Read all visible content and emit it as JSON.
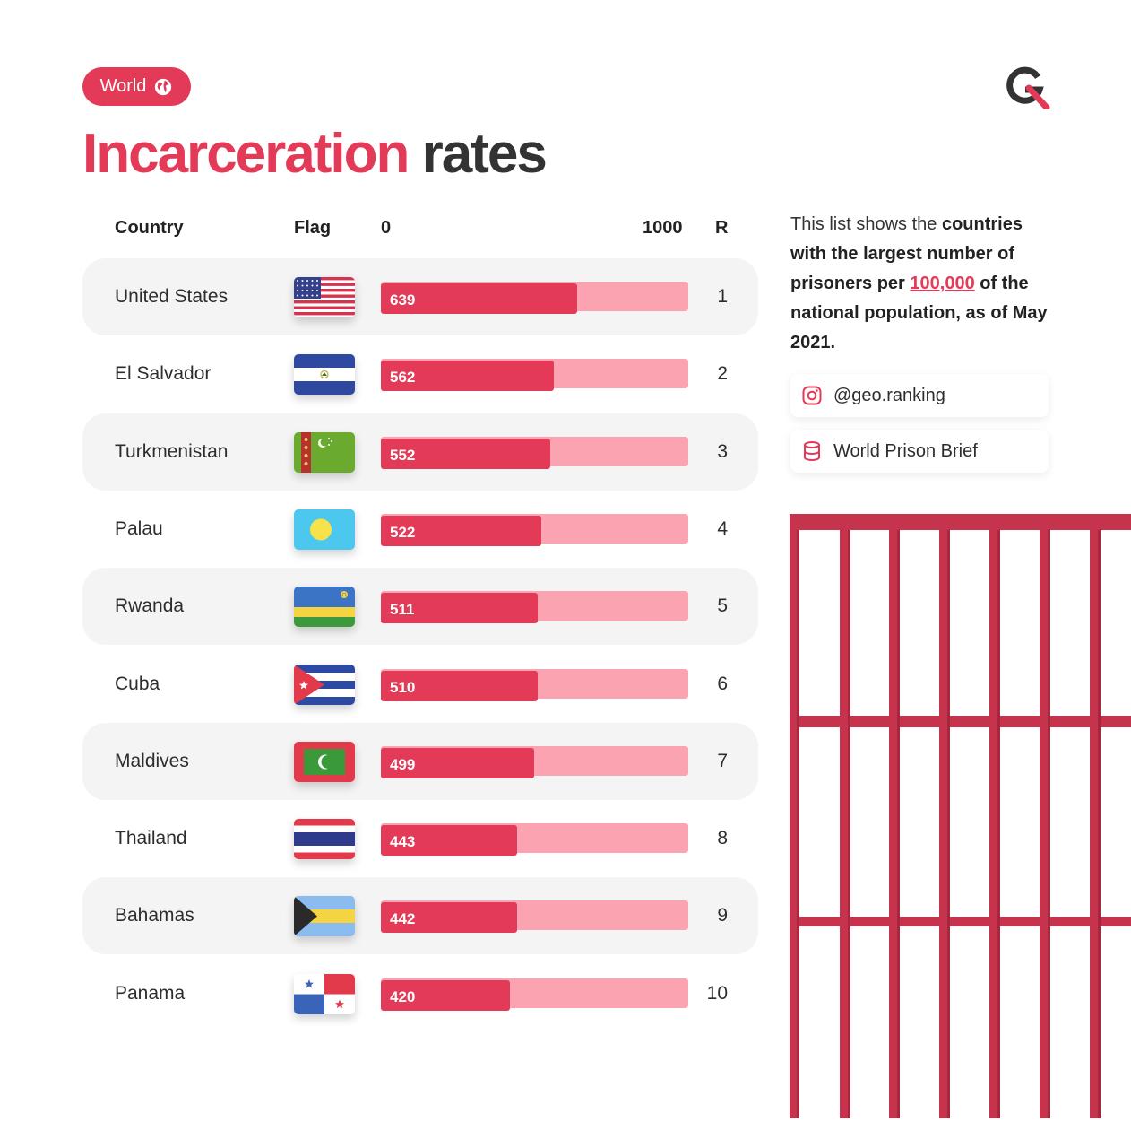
{
  "badge": {
    "label": "World",
    "icon": "globe-icon"
  },
  "title": {
    "part1": "Incarceration",
    "part2": "rates"
  },
  "headers": {
    "country": "Country",
    "flag": "Flag",
    "scale_min": "0",
    "scale_max": "1000",
    "rank": "R"
  },
  "chart_data": {
    "type": "bar",
    "title": "Incarceration rates",
    "xlim": [
      0,
      1000
    ],
    "categories": [
      "United States",
      "El Salvador",
      "Turkmenistan",
      "Palau",
      "Rwanda",
      "Cuba",
      "Maldives",
      "Thailand",
      "Bahamas",
      "Panama"
    ],
    "values": [
      639,
      562,
      552,
      522,
      511,
      510,
      499,
      443,
      442,
      420
    ],
    "ranks": [
      "1",
      "2",
      "3",
      "4",
      "5",
      "6",
      "7",
      "8",
      "9",
      "10"
    ],
    "value_labels": [
      "639",
      "562",
      "552",
      "522",
      "511",
      "510",
      "499",
      "443",
      "442",
      "420"
    ],
    "flags": [
      "flag-united-states",
      "flag-el-salvador",
      "flag-turkmenistan",
      "flag-palau",
      "flag-rwanda",
      "flag-cuba",
      "flag-maldives",
      "flag-thailand",
      "flag-bahamas",
      "flag-panama"
    ]
  },
  "description": {
    "t1": "This list shows the ",
    "b1": "countries with the largest number of prisoners per ",
    "highlight": "100,000",
    "b2": " of the national population, as of May 2021."
  },
  "sources": [
    {
      "icon": "instagram-icon",
      "label": "@geo.ranking"
    },
    {
      "icon": "database-icon",
      "label": "World Prison Brief"
    }
  ],
  "colors": {
    "accent": "#e23a57",
    "bar_track": "#fca3b2",
    "row_shade": "#f4f4f4",
    "title_dark": "#333333"
  }
}
